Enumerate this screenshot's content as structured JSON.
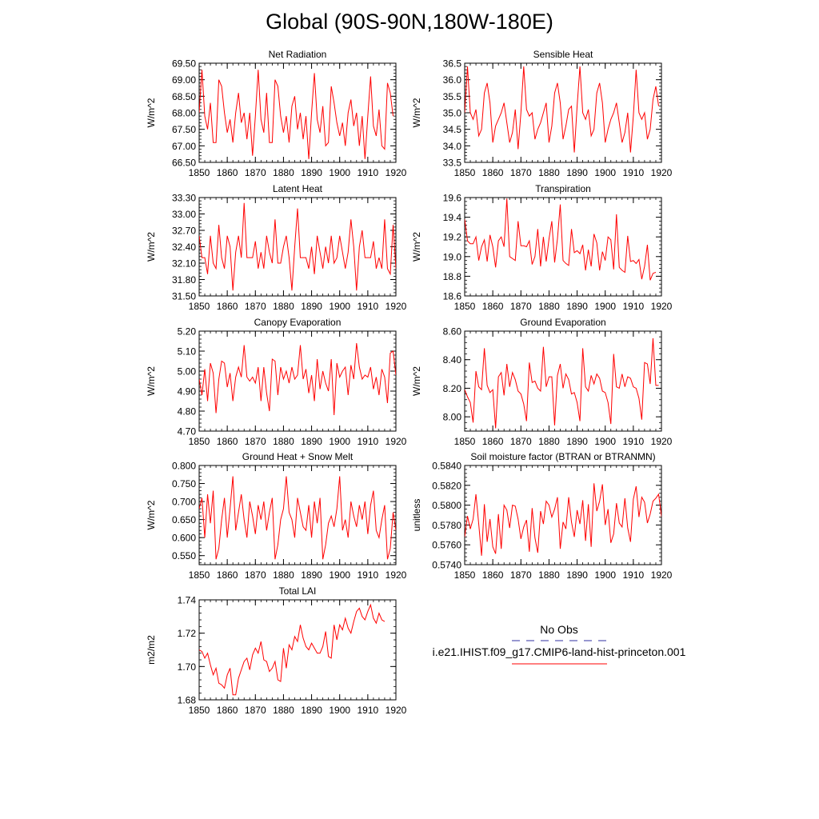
{
  "title": "Global (90S-90N,180W-180E)",
  "colors": {
    "model": "#ff0000",
    "obs": "#3030a0"
  },
  "legend": {
    "obs_label": "No Obs",
    "model_label": "i.e21.IHIST.f09_g17.CMIP6-land-hist-princeton.001"
  },
  "chart_data": [
    {
      "type": "line",
      "title": "Net Radiation",
      "ylabel": "W/m^2",
      "xlim": [
        1850,
        1920
      ],
      "xticks": [
        1850,
        1860,
        1870,
        1880,
        1890,
        1900,
        1910,
        1920
      ],
      "ylim": [
        66.5,
        69.5
      ],
      "yticks": [
        66.5,
        67.0,
        67.5,
        68.0,
        68.5,
        69.0,
        69.5
      ],
      "ydecimals": 2,
      "x_start": 1850,
      "series": [
        {
          "values": [
            68.0,
            69.3,
            67.9,
            67.5,
            68.3,
            67.1,
            67.1,
            69.0,
            68.8,
            68.0,
            67.4,
            67.8,
            67.1,
            68.0,
            68.6,
            67.7,
            68.0,
            67.2,
            68.0,
            66.7,
            67.9,
            69.3,
            67.8,
            67.4,
            68.6,
            67.1,
            67.1,
            69.0,
            68.8,
            67.9,
            67.4,
            67.9,
            67.1,
            68.2,
            68.5,
            67.5,
            68.0,
            67.2,
            67.9,
            66.6,
            68.0,
            69.2,
            67.8,
            67.4,
            68.2,
            67.0,
            67.1,
            68.8,
            68.3,
            67.7,
            67.3,
            67.7,
            67.0,
            68.0,
            68.4,
            67.6,
            68.0,
            67.0,
            67.9,
            66.6,
            67.9,
            69.1,
            67.6,
            67.3,
            68.1,
            67.0,
            66.9,
            68.9,
            68.6,
            67.9
          ]
        }
      ]
    },
    {
      "type": "line",
      "title": "Sensible Heat",
      "ylabel": "W/m^2",
      "xlim": [
        1850,
        1920
      ],
      "xticks": [
        1850,
        1860,
        1870,
        1880,
        1890,
        1900,
        1910,
        1920
      ],
      "ylim": [
        33.5,
        36.5
      ],
      "yticks": [
        33.5,
        34.0,
        34.5,
        35.0,
        35.5,
        36.0,
        36.5
      ],
      "ydecimals": 1,
      "x_start": 1850,
      "series": [
        {
          "values": [
            35.0,
            36.4,
            35.0,
            34.8,
            35.1,
            34.3,
            34.5,
            35.6,
            35.9,
            35.3,
            34.1,
            34.6,
            34.8,
            35.0,
            35.3,
            34.7,
            34.1,
            34.4,
            35.1,
            33.9,
            35.0,
            36.4,
            35.1,
            34.9,
            35.0,
            34.2,
            34.5,
            34.7,
            35.0,
            35.3,
            34.1,
            34.6,
            35.6,
            35.9,
            35.3,
            34.2,
            34.6,
            35.1,
            35.2,
            33.8,
            35.2,
            36.4,
            35.0,
            34.8,
            35.1,
            34.3,
            34.5,
            35.6,
            35.9,
            35.3,
            34.1,
            34.5,
            34.8,
            35.0,
            35.3,
            34.7,
            34.1,
            34.4,
            35.0,
            33.8,
            34.9,
            36.3,
            35.0,
            34.8,
            35.0,
            34.2,
            34.5,
            35.4,
            35.8,
            35.2
          ]
        }
      ]
    },
    {
      "type": "line",
      "title": "Latent Heat",
      "ylabel": "W/m^2",
      "xlim": [
        1850,
        1920
      ],
      "xticks": [
        1850,
        1860,
        1870,
        1880,
        1890,
        1900,
        1910,
        1920
      ],
      "ylim": [
        31.5,
        33.3
      ],
      "yticks": [
        31.5,
        31.8,
        32.1,
        32.4,
        32.7,
        33.0,
        33.3
      ],
      "ydecimals": 2,
      "x_start": 1850,
      "series": [
        {
          "values": [
            32.6,
            32.2,
            32.2,
            31.9,
            32.6,
            32.1,
            32.0,
            32.8,
            32.2,
            32.0,
            32.6,
            32.4,
            31.6,
            32.3,
            32.6,
            32.2,
            33.2,
            32.2,
            32.2,
            32.2,
            32.5,
            32.0,
            32.3,
            32.0,
            32.6,
            32.3,
            32.1,
            32.9,
            32.1,
            32.1,
            32.4,
            32.6,
            32.2,
            31.6,
            32.4,
            33.1,
            32.2,
            32.2,
            32.2,
            32.0,
            32.4,
            31.9,
            32.6,
            32.3,
            32.0,
            32.4,
            32.1,
            32.6,
            32.1,
            32.2,
            32.6,
            32.3,
            32.0,
            32.3,
            32.9,
            32.4,
            31.6,
            32.4,
            32.7,
            32.2,
            32.2,
            32.2,
            32.5,
            32.0,
            32.2,
            32.0,
            32.9,
            32.0,
            31.9,
            32.8,
            32.0
          ]
        }
      ]
    },
    {
      "type": "line",
      "title": "Transpiration",
      "ylabel": "W/m^2",
      "xlim": [
        1850,
        1920
      ],
      "xticks": [
        1850,
        1860,
        1870,
        1880,
        1890,
        1900,
        1910,
        1920
      ],
      "ylim": [
        18.6,
        19.6
      ],
      "yticks": [
        18.6,
        18.8,
        19.0,
        19.2,
        19.4,
        19.6
      ],
      "ydecimals": 1,
      "x_start": 1850,
      "series": [
        {
          "values": [
            19.38,
            19.16,
            19.13,
            19.13,
            19.2,
            18.96,
            19.1,
            19.17,
            18.95,
            19.22,
            19.1,
            18.89,
            19.16,
            19.2,
            19.1,
            19.59,
            19.0,
            18.98,
            18.96,
            19.36,
            19.11,
            19.11,
            19.1,
            19.16,
            18.92,
            19.0,
            19.28,
            18.9,
            19.2,
            18.95,
            19.18,
            19.36,
            18.94,
            19.18,
            19.53,
            18.96,
            18.93,
            18.91,
            19.28,
            19.04,
            19.06,
            19.03,
            19.12,
            18.86,
            19.07,
            18.9,
            19.23,
            19.14,
            18.86,
            19.05,
            18.96,
            19.2,
            19.17,
            18.87,
            19.43,
            18.89,
            18.86,
            18.84,
            19.21,
            18.95,
            18.96,
            18.93,
            18.97,
            18.77,
            18.9,
            19.12,
            18.76,
            18.83,
            18.84
          ]
        }
      ]
    },
    {
      "type": "line",
      "title": "Canopy Evaporation",
      "ylabel": "W/m^2",
      "xlim": [
        1850,
        1920
      ],
      "xticks": [
        1850,
        1860,
        1870,
        1880,
        1890,
        1900,
        1910,
        1920
      ],
      "ylim": [
        4.7,
        5.2
      ],
      "yticks": [
        4.7,
        4.8,
        4.9,
        5.0,
        5.1,
        5.2
      ],
      "ydecimals": 2,
      "x_start": 1850,
      "series": [
        {
          "values": [
            4.96,
            4.88,
            5.01,
            4.85,
            5.04,
            4.99,
            4.79,
            4.96,
            5.05,
            5.04,
            4.92,
            4.99,
            4.85,
            4.97,
            5.02,
            4.97,
            5.13,
            4.97,
            4.95,
            4.97,
            4.94,
            5.02,
            4.85,
            5.02,
            4.89,
            4.8,
            5.06,
            5.05,
            4.88,
            5.02,
            4.96,
            5.0,
            4.94,
            5.02,
            4.96,
            4.98,
            5.13,
            4.96,
            5.01,
            4.89,
            4.98,
            4.85,
            5.06,
            4.91,
            5.0,
            4.94,
            4.9,
            5.06,
            4.78,
            5.04,
            4.97,
            5.0,
            5.02,
            4.88,
            5.03,
            4.96,
            5.14,
            5.02,
            4.96,
            4.98,
            4.97,
            5.02,
            4.91,
            4.97,
            4.88,
            5.01,
            4.97,
            4.84,
            5.09,
            5.1,
            4.98
          ]
        }
      ]
    },
    {
      "type": "line",
      "title": "Ground Evaporation",
      "ylabel": "W/m^2",
      "xlim": [
        1850,
        1920
      ],
      "xticks": [
        1850,
        1860,
        1870,
        1880,
        1890,
        1900,
        1910,
        1920
      ],
      "ylim": [
        7.9,
        8.6
      ],
      "yticks": [
        8.0,
        8.2,
        8.4,
        8.6
      ],
      "ydecimals": 2,
      "x_start": 1850,
      "series": [
        {
          "values": [
            8.19,
            8.14,
            8.1,
            7.96,
            8.32,
            8.21,
            8.19,
            8.48,
            8.22,
            8.17,
            8.19,
            7.92,
            8.28,
            8.31,
            8.15,
            8.37,
            8.21,
            8.31,
            8.26,
            8.18,
            8.16,
            8.09,
            7.97,
            8.38,
            8.24,
            8.25,
            8.2,
            8.18,
            8.49,
            8.21,
            8.28,
            8.28,
            7.94,
            8.29,
            8.37,
            8.2,
            8.3,
            8.26,
            8.16,
            8.17,
            8.1,
            7.97,
            8.48,
            8.21,
            8.18,
            8.29,
            8.23,
            8.3,
            8.27,
            8.18,
            8.17,
            8.1,
            7.95,
            8.44,
            8.21,
            8.2,
            8.3,
            8.21,
            8.28,
            8.27,
            8.21,
            8.2,
            8.13,
            7.98,
            8.38,
            8.37,
            8.23,
            8.55,
            8.22,
            8.22
          ]
        }
      ]
    },
    {
      "type": "line",
      "title": "Ground Heat + Snow Melt",
      "ylabel": "W/m^2",
      "xlim": [
        1850,
        1920
      ],
      "xticks": [
        1850,
        1860,
        1870,
        1880,
        1890,
        1900,
        1910,
        1920
      ],
      "ylim": [
        0.525,
        0.8
      ],
      "yticks": [
        0.55,
        0.6,
        0.65,
        0.7,
        0.75,
        0.8
      ],
      "ydecimals": 3,
      "x_start": 1850,
      "series": [
        {
          "values": [
            0.68,
            0.71,
            0.6,
            0.72,
            0.64,
            0.73,
            0.54,
            0.57,
            0.65,
            0.71,
            0.6,
            0.68,
            0.77,
            0.62,
            0.67,
            0.72,
            0.65,
            0.6,
            0.7,
            0.66,
            0.61,
            0.69,
            0.65,
            0.7,
            0.62,
            0.67,
            0.71,
            0.54,
            0.58,
            0.65,
            0.68,
            0.77,
            0.67,
            0.65,
            0.6,
            0.71,
            0.67,
            0.63,
            0.62,
            0.69,
            0.6,
            0.7,
            0.64,
            0.71,
            0.54,
            0.58,
            0.64,
            0.66,
            0.63,
            0.68,
            0.77,
            0.62,
            0.65,
            0.6,
            0.7,
            0.66,
            0.63,
            0.69,
            0.65,
            0.7,
            0.61,
            0.69,
            0.73,
            0.62,
            0.6,
            0.65,
            0.69,
            0.54,
            0.57,
            0.67,
            0.62
          ]
        }
      ]
    },
    {
      "type": "line",
      "title": "Soil moisture factor (BTRAN or BTRANMN)",
      "ylabel": "unitless",
      "xlim": [
        1850,
        1920
      ],
      "xticks": [
        1850,
        1860,
        1870,
        1880,
        1890,
        1900,
        1910,
        1920
      ],
      "ylim": [
        0.574,
        0.584
      ],
      "yticks": [
        0.574,
        0.576,
        0.578,
        0.58,
        0.582,
        0.584
      ],
      "ydecimals": 4,
      "x_start": 1850,
      "series": [
        {
          "values": [
            0.5768,
            0.5789,
            0.5776,
            0.5786,
            0.5811,
            0.5781,
            0.5749,
            0.5801,
            0.5763,
            0.5786,
            0.5758,
            0.5751,
            0.5791,
            0.5756,
            0.58,
            0.5795,
            0.5777,
            0.58,
            0.5799,
            0.5786,
            0.5766,
            0.5778,
            0.5785,
            0.5753,
            0.5797,
            0.5767,
            0.5752,
            0.5794,
            0.5781,
            0.5804,
            0.58,
            0.5788,
            0.5796,
            0.5808,
            0.5756,
            0.5783,
            0.5776,
            0.5808,
            0.5783,
            0.5768,
            0.5795,
            0.5781,
            0.5805,
            0.5764,
            0.5801,
            0.5758,
            0.5822,
            0.5794,
            0.5804,
            0.5821,
            0.578,
            0.5796,
            0.5762,
            0.5771,
            0.5802,
            0.5782,
            0.5778,
            0.5807,
            0.5777,
            0.5763,
            0.5806,
            0.5819,
            0.5788,
            0.5808,
            0.5803,
            0.5782,
            0.5791,
            0.5804,
            0.5807,
            0.5811,
            0.5789,
            0.578,
            0.5787,
            0.5829,
            0.5805,
            0.577,
            0.5834,
            0.5806
          ]
        }
      ]
    },
    {
      "type": "line",
      "title": "Total LAI",
      "ylabel": "m2/m2",
      "xlim": [
        1850,
        1920
      ],
      "xticks": [
        1850,
        1860,
        1870,
        1880,
        1890,
        1900,
        1910,
        1920
      ],
      "ylim": [
        1.68,
        1.74
      ],
      "yticks": [
        1.68,
        1.7,
        1.72,
        1.74
      ],
      "ydecimals": 2,
      "x_start": 1850,
      "series": [
        {
          "values": [
            1.71,
            1.709,
            1.705,
            1.708,
            1.701,
            1.695,
            1.699,
            1.69,
            1.689,
            1.687,
            1.695,
            1.699,
            1.683,
            1.683,
            1.693,
            1.698,
            1.703,
            1.705,
            1.698,
            1.707,
            1.711,
            1.708,
            1.715,
            1.704,
            1.703,
            1.697,
            1.699,
            1.703,
            1.692,
            1.691,
            1.711,
            1.699,
            1.713,
            1.71,
            1.718,
            1.715,
            1.725,
            1.717,
            1.712,
            1.71,
            1.714,
            1.711,
            1.708,
            1.708,
            1.712,
            1.721,
            1.706,
            1.705,
            1.725,
            1.716,
            1.725,
            1.722,
            1.729,
            1.723,
            1.72,
            1.727,
            1.733,
            1.735,
            1.73,
            1.728,
            1.733,
            1.737,
            1.729,
            1.726,
            1.732,
            1.728,
            1.727
          ]
        }
      ]
    }
  ]
}
